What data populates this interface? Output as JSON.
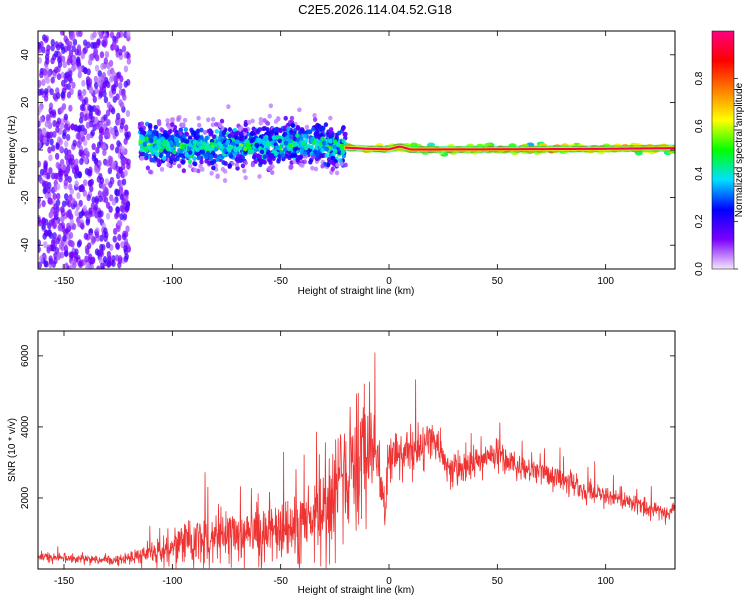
{
  "title": "C2E5.2026.114.04.52.G18",
  "colorbar": {
    "label": "Normalized spectral amplitude",
    "ticks": [
      "0.0",
      "0.2",
      "0.4",
      "0.6",
      "0.8"
    ],
    "tick_values": [
      0.0,
      0.2,
      0.4,
      0.6,
      0.8
    ],
    "range": [
      0.0,
      1.0
    ],
    "stops": [
      "#f4e6ff",
      "#7a00ff",
      "#0000ff",
      "#00e0ff",
      "#00ff00",
      "#ffff00",
      "#ff8000",
      "#ff0000",
      "#ff0080"
    ]
  },
  "chart_data": [
    {
      "type": "heatmap",
      "xlabel": "Height of straight line (km)",
      "ylabel": "Frequency (Hz)",
      "xlim": [
        -162,
        132
      ],
      "ylim": [
        -50,
        50
      ],
      "xticks": [
        -150,
        -100,
        -50,
        0,
        50,
        100
      ],
      "yticks": [
        -40,
        -20,
        0,
        20,
        40
      ],
      "xtick_labels": [
        "-150",
        "-100",
        "-50",
        "0",
        "50",
        "100"
      ],
      "ytick_labels": [
        "-40",
        "-20",
        "0",
        "20",
        "40"
      ],
      "regions": [
        {
          "x": [
            -162,
            -120
          ],
          "freq_spread": 50,
          "amplitude": 0.15,
          "description_key": "noise"
        },
        {
          "x": [
            -115,
            -20
          ],
          "freq_spread": 10,
          "amplitude": 0.35
        },
        {
          "x": [
            -20,
            132
          ],
          "freq_spread": 1.5,
          "amplitude": 0.85
        }
      ],
      "centerline_x": [
        -115,
        -100,
        -80,
        -60,
        -40,
        -20,
        -10,
        0,
        5,
        10,
        50,
        100,
        132
      ],
      "centerline_freq": [
        3,
        2,
        1,
        2,
        3,
        1,
        0.5,
        0.3,
        1.5,
        0.2,
        0.3,
        0.5,
        0.8
      ]
    },
    {
      "type": "line",
      "xlabel": "Height of straight line (km)",
      "ylabel": "SNR (10 * v/v)",
      "xlim": [
        -162,
        132
      ],
      "ylim": [
        0,
        6700
      ],
      "xticks": [
        -150,
        -100,
        -50,
        0,
        50,
        100
      ],
      "yticks": [
        2000,
        4000,
        6000
      ],
      "xtick_labels": [
        "-150",
        "-100",
        "-50",
        "0",
        "50",
        "100"
      ],
      "ytick_labels": [
        "2000",
        "4000",
        "6000"
      ],
      "color": "#ee3333",
      "x": [
        -162,
        -150,
        -130,
        -120,
        -110,
        -100,
        -90,
        -80,
        -70,
        -60,
        -50,
        -40,
        -30,
        -25,
        -20,
        -15,
        -10,
        -8,
        -5,
        -2,
        0,
        5,
        10,
        15,
        20,
        25,
        30,
        40,
        50,
        60,
        70,
        80,
        90,
        100,
        110,
        120,
        132
      ],
      "y": [
        350,
        300,
        250,
        300,
        450,
        650,
        800,
        900,
        1000,
        1000,
        1050,
        1300,
        1700,
        2200,
        2600,
        2900,
        3300,
        3500,
        3000,
        1500,
        3300,
        3200,
        3400,
        3300,
        3800,
        3100,
        2800,
        3000,
        3200,
        2900,
        2800,
        2500,
        2200,
        2100,
        1900,
        1700,
        1600
      ],
      "noise_amplitude": [
        150,
        150,
        150,
        150,
        400,
        600,
        700,
        800,
        800,
        800,
        900,
        1100,
        1500,
        1800,
        2000,
        2200,
        2400,
        1500,
        1200,
        900,
        900,
        800,
        800,
        700,
        700,
        600,
        500,
        500,
        500,
        400,
        400,
        400,
        350,
        350,
        300,
        300,
        300
      ]
    }
  ]
}
